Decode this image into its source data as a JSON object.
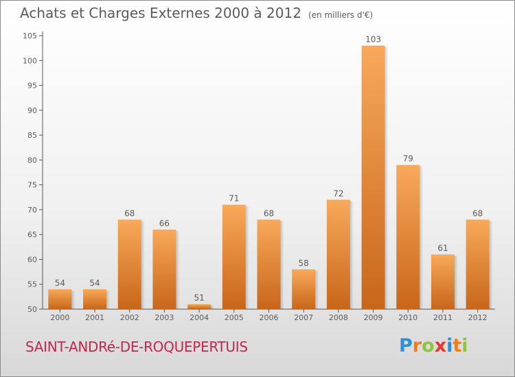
{
  "title": "Achats et Charges Externes 2000 à 2012",
  "unit": "(en milliers d'€)",
  "commune": "SAINT-ANDRé-DE-ROQUEPERTUIS",
  "logo": {
    "text": "Proxiti",
    "letters": [
      {
        "ch": "P",
        "color": "#2e8fd6"
      },
      {
        "ch": "r",
        "color": "#f07d1a"
      },
      {
        "ch": "o",
        "color": "#8cc63f"
      },
      {
        "ch": "x",
        "color": "#e8372b"
      },
      {
        "ch": "i",
        "color": "#2e8fd6"
      },
      {
        "ch": "t",
        "color": "#f07d1a"
      },
      {
        "ch": "i",
        "color": "#8cc63f"
      }
    ]
  },
  "colors": {
    "bar_top": "#f8a95a",
    "bar_bottom": "#c8661a",
    "commune": "#c0284b",
    "text": "#5a5a5a"
  },
  "chart_data": {
    "type": "bar",
    "categories": [
      "2000",
      "2001",
      "2002",
      "2003",
      "2004",
      "2005",
      "2006",
      "2007",
      "2008",
      "2009",
      "2010",
      "2011",
      "2012"
    ],
    "values": [
      54,
      54,
      68,
      66,
      51,
      71,
      68,
      58,
      72,
      103,
      79,
      61,
      68
    ],
    "ylim": [
      50,
      105
    ],
    "yticks": [
      50,
      55,
      60,
      65,
      70,
      75,
      80,
      85,
      90,
      95,
      100,
      105
    ],
    "grid": false,
    "xlabel": "",
    "ylabel": ""
  }
}
